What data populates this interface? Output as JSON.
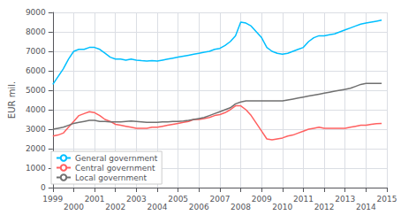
{
  "chart_data": {
    "type": "line",
    "ylabel": "EUR mil.",
    "x": [
      1999.0,
      1999.25,
      1999.5,
      1999.75,
      2000.0,
      2000.25,
      2000.5,
      2000.75,
      2001.0,
      2001.25,
      2001.5,
      2001.75,
      2002.0,
      2002.25,
      2002.5,
      2002.75,
      2003.0,
      2003.25,
      2003.5,
      2003.75,
      2004.0,
      2004.25,
      2004.5,
      2004.75,
      2005.0,
      2005.25,
      2005.5,
      2005.75,
      2006.0,
      2006.25,
      2006.5,
      2006.75,
      2007.0,
      2007.25,
      2007.5,
      2007.75,
      2008.0,
      2008.25,
      2008.5,
      2008.75,
      2009.0,
      2009.25,
      2009.5,
      2009.75,
      2010.0,
      2010.25,
      2010.5,
      2010.75,
      2011.0,
      2011.25,
      2011.5,
      2011.75,
      2012.0,
      2012.25,
      2012.5,
      2012.75,
      2013.0,
      2013.25,
      2013.5,
      2013.75,
      2014.0,
      2014.25,
      2014.5,
      2014.75
    ],
    "series": [
      {
        "name": "General government",
        "color": "#00BFFF",
        "values": [
          5300,
          5700,
          6100,
          6600,
          7000,
          7100,
          7100,
          7200,
          7200,
          7100,
          6900,
          6700,
          6600,
          6600,
          6550,
          6600,
          6550,
          6520,
          6500,
          6520,
          6500,
          6550,
          6600,
          6650,
          6700,
          6750,
          6800,
          6850,
          6900,
          6950,
          7000,
          7100,
          7150,
          7300,
          7500,
          7800,
          8500,
          8450,
          8300,
          8000,
          7700,
          7200,
          7000,
          6900,
          6850,
          6900,
          7000,
          7100,
          7200,
          7500,
          7700,
          7800,
          7800,
          7850,
          7900,
          8000,
          8100,
          8200,
          8300,
          8400,
          8450,
          8500,
          8550,
          8600
        ]
      },
      {
        "name": "Central government",
        "color": "#FF6060",
        "values": [
          2650,
          2700,
          2800,
          3100,
          3400,
          3700,
          3800,
          3900,
          3850,
          3700,
          3500,
          3400,
          3250,
          3200,
          3150,
          3100,
          3050,
          3050,
          3050,
          3100,
          3100,
          3150,
          3200,
          3250,
          3300,
          3350,
          3400,
          3500,
          3500,
          3550,
          3600,
          3700,
          3750,
          3850,
          4000,
          4200,
          4200,
          4000,
          3700,
          3300,
          2900,
          2500,
          2450,
          2500,
          2550,
          2650,
          2700,
          2800,
          2900,
          3000,
          3050,
          3100,
          3050,
          3050,
          3050,
          3050,
          3050,
          3100,
          3150,
          3200,
          3200,
          3250,
          3280,
          3300
        ]
      },
      {
        "name": "Local government",
        "color": "#707070",
        "values": [
          3000,
          3050,
          3100,
          3200,
          3300,
          3350,
          3400,
          3450,
          3450,
          3400,
          3400,
          3380,
          3370,
          3380,
          3400,
          3420,
          3400,
          3380,
          3350,
          3350,
          3350,
          3370,
          3380,
          3400,
          3400,
          3420,
          3450,
          3500,
          3550,
          3600,
          3700,
          3800,
          3900,
          4000,
          4100,
          4300,
          4400,
          4450,
          4450,
          4450,
          4450,
          4450,
          4450,
          4450,
          4450,
          4500,
          4550,
          4600,
          4650,
          4700,
          4750,
          4800,
          4850,
          4900,
          4950,
          5000,
          5050,
          5100,
          5200,
          5300,
          5350,
          5350,
          5350,
          5350
        ]
      }
    ],
    "xlim": [
      1999,
      2015
    ],
    "xticks": [
      1999,
      2000,
      2001,
      2002,
      2003,
      2004,
      2005,
      2006,
      2007,
      2008,
      2009,
      2010,
      2011,
      2012,
      2013,
      2014,
      2015
    ],
    "ylim": [
      0,
      9000
    ],
    "yticks": [
      0,
      1000,
      2000,
      3000,
      4000,
      5000,
      6000,
      7000,
      8000,
      9000
    ],
    "grid": true,
    "legend": "lower left"
  }
}
